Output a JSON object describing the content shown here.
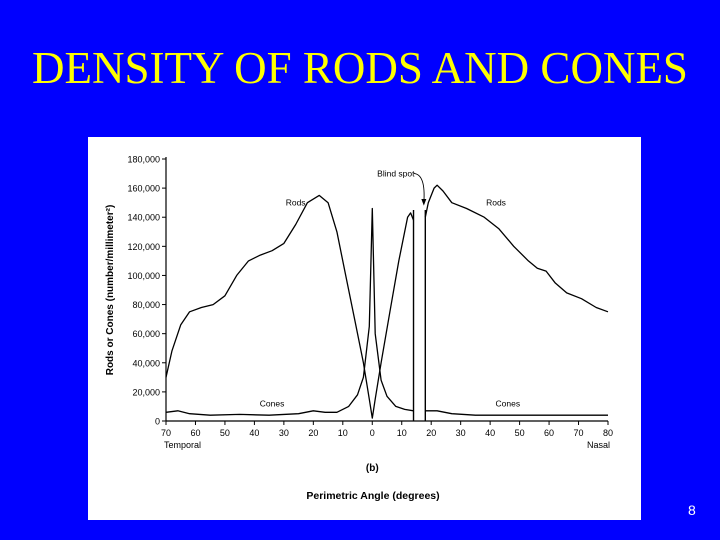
{
  "slide": {
    "title": "DENSITY OF RODS AND CONES",
    "number": "8",
    "background_color": "#0000ff",
    "title_color": "#ffff00"
  },
  "chart_data": {
    "type": "line",
    "title": "",
    "xlabel": "Perimetric Angle (degrees)",
    "ylabel": "Rods or Cones (number/millimeter²)",
    "panel_label": "(b)",
    "x_end_labels": {
      "left": "Temporal",
      "right": "Nasal"
    },
    "xlim": [
      -70,
      80
    ],
    "ylim": [
      0,
      180000
    ],
    "x_ticks": [
      -70,
      -60,
      -50,
      -40,
      -30,
      -20,
      -10,
      0,
      10,
      20,
      30,
      40,
      50,
      60,
      70,
      80
    ],
    "x_tick_labels": [
      "70",
      "60",
      "50",
      "40",
      "30",
      "20",
      "10",
      "0",
      "10",
      "20",
      "30",
      "40",
      "50",
      "60",
      "70",
      "80"
    ],
    "y_ticks": [
      0,
      20000,
      40000,
      60000,
      80000,
      100000,
      120000,
      140000,
      160000,
      180000
    ],
    "y_tick_labels": [
      "0",
      "20,000",
      "40,000",
      "60,000",
      "80,000",
      "100,000",
      "120,000",
      "140,000",
      "160,000",
      "180,000"
    ],
    "grid": false,
    "blind_spot": {
      "label": "Blind spot",
      "x_range": [
        14,
        18
      ],
      "arrow_target_x": 17.5
    },
    "series": [
      {
        "name": "Rods",
        "label_positions": [
          [
            -26,
            148000
          ],
          [
            42,
            148000
          ]
        ],
        "segments": [
          [
            [
              -70,
              30000
            ],
            [
              -68,
              48000
            ],
            [
              -65,
              66000
            ],
            [
              -62,
              75000
            ],
            [
              -58,
              78000
            ],
            [
              -54,
              80000
            ],
            [
              -50,
              86000
            ],
            [
              -46,
              100000
            ],
            [
              -42,
              110000
            ],
            [
              -38,
              114000
            ],
            [
              -34,
              117000
            ],
            [
              -30,
              122000
            ],
            [
              -26,
              135000
            ],
            [
              -22,
              150000
            ],
            [
              -18,
              155000
            ],
            [
              -15,
              150000
            ],
            [
              -12,
              130000
            ],
            [
              -9,
              100000
            ],
            [
              -6,
              70000
            ],
            [
              -3,
              40000
            ],
            [
              -1,
              15000
            ],
            [
              0,
              2000
            ],
            [
              1,
              15000
            ],
            [
              3,
              40000
            ],
            [
              6,
              75000
            ],
            [
              9,
              110000
            ],
            [
              12,
              140000
            ],
            [
              13,
              143000
            ],
            [
              14,
              138000
            ]
          ],
          [
            [
              18,
              140000
            ],
            [
              19,
              150000
            ],
            [
              21,
              160000
            ],
            [
              22,
              162000
            ],
            [
              24,
              158000
            ],
            [
              27,
              150000
            ],
            [
              32,
              146000
            ],
            [
              38,
              140000
            ],
            [
              43,
              132000
            ],
            [
              48,
              120000
            ],
            [
              53,
              110000
            ],
            [
              56,
              105000
            ],
            [
              59,
              103000
            ],
            [
              62,
              95000
            ],
            [
              66,
              88000
            ],
            [
              71,
              84000
            ],
            [
              76,
              78000
            ],
            [
              80,
              75000
            ]
          ]
        ]
      },
      {
        "name": "Cones",
        "label_positions": [
          [
            -34,
            10000
          ],
          [
            46,
            10000
          ]
        ],
        "segments": [
          [
            [
              -70,
              6000
            ],
            [
              -66,
              7000
            ],
            [
              -62,
              5000
            ],
            [
              -55,
              4000
            ],
            [
              -45,
              4500
            ],
            [
              -35,
              4000
            ],
            [
              -25,
              5000
            ],
            [
              -20,
              7000
            ],
            [
              -16,
              6000
            ],
            [
              -12,
              6000
            ],
            [
              -8,
              10000
            ],
            [
              -5,
              18000
            ],
            [
              -3,
              30000
            ],
            [
              -1,
              65000
            ],
            [
              0,
              146000
            ],
            [
              1,
              60000
            ],
            [
              3,
              28000
            ],
            [
              5,
              17000
            ],
            [
              8,
              10000
            ],
            [
              11,
              8000
            ],
            [
              14,
              7000
            ]
          ],
          [
            [
              18,
              7000
            ],
            [
              22,
              7000
            ],
            [
              27,
              5000
            ],
            [
              35,
              4000
            ],
            [
              45,
              4000
            ],
            [
              55,
              4000
            ],
            [
              65,
              4000
            ],
            [
              72,
              4000
            ],
            [
              80,
              4000
            ]
          ]
        ]
      }
    ]
  }
}
